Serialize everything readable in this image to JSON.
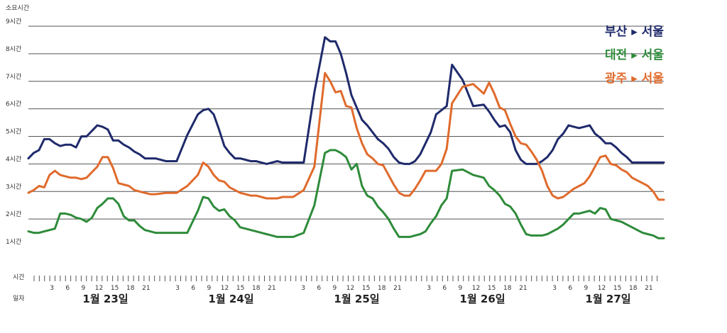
{
  "chart_data": {
    "type": "line",
    "ylabel": "소요시간",
    "y_ticks": [
      {
        "v": 1,
        "label": "1시간"
      },
      {
        "v": 2,
        "label": "2시간"
      },
      {
        "v": 3,
        "label": "3시간"
      },
      {
        "v": 4,
        "label": "4시간"
      },
      {
        "v": 5,
        "label": "5시간"
      },
      {
        "v": 6,
        "label": "6시간"
      },
      {
        "v": 7,
        "label": "7시간"
      },
      {
        "v": 8,
        "label": "8시간"
      },
      {
        "v": 9,
        "label": "9시간"
      }
    ],
    "ylim": [
      1,
      9
    ],
    "gridlines_y": [
      2,
      3,
      4,
      5,
      6,
      7,
      8,
      9
    ],
    "x_row1_label": "시간",
    "x_row2_label": "일자",
    "hour_ticks": [
      "3",
      "6",
      "9",
      "12",
      "15",
      "18",
      "21"
    ],
    "days": [
      "1월 23일",
      "1월 24일",
      "1월 25일",
      "1월 26일",
      "1월 27일"
    ],
    "legend_position": "top-right",
    "series": [
      {
        "name": "부산 ▸ 서울",
        "color": "#1f2a6b",
        "x": [
          0,
          1,
          2,
          3,
          4,
          5,
          6,
          7,
          8,
          9,
          10,
          11,
          12,
          13,
          14,
          15,
          16,
          17,
          18,
          19,
          20,
          21,
          22,
          23,
          24,
          26,
          28,
          30,
          32,
          33,
          34,
          35,
          36,
          37,
          38,
          39,
          40,
          41,
          42,
          43,
          44,
          45,
          46,
          47,
          48,
          49,
          50,
          52,
          54,
          56,
          57,
          58,
          59,
          60,
          61,
          62,
          63,
          64,
          65,
          66,
          67,
          68,
          69,
          70,
          71,
          72,
          73,
          74,
          75,
          76,
          77,
          78,
          79,
          80,
          82,
          84,
          86,
          87,
          88,
          89,
          90,
          91,
          92,
          93,
          94,
          95,
          96,
          97,
          98,
          99,
          100,
          101,
          102,
          103,
          104,
          105,
          106,
          107,
          108,
          109,
          110,
          111,
          112,
          113,
          114,
          115,
          116,
          117,
          118,
          119,
          120
        ],
        "values": [
          4.2,
          4.4,
          4.5,
          4.9,
          4.9,
          4.75,
          4.65,
          4.7,
          4.7,
          4.6,
          5.0,
          5.0,
          5.2,
          5.4,
          5.35,
          5.25,
          4.85,
          4.85,
          4.7,
          4.6,
          4.45,
          4.35,
          4.2,
          4.2,
          4.2,
          4.1,
          4.1,
          5.05,
          5.8,
          5.95,
          6.0,
          5.8,
          5.25,
          4.65,
          4.4,
          4.2,
          4.2,
          4.15,
          4.1,
          4.1,
          4.05,
          4.0,
          4.05,
          4.1,
          4.05,
          4.05,
          4.05,
          4.05,
          6.6,
          8.6,
          8.45,
          8.45,
          8.0,
          7.3,
          6.5,
          6.05,
          5.6,
          5.4,
          5.15,
          4.9,
          4.75,
          4.55,
          4.25,
          4.05,
          4.0,
          4.0,
          4.1,
          4.35,
          4.75,
          5.15,
          5.8,
          5.95,
          6.1,
          7.6,
          7.05,
          6.1,
          6.15,
          5.9,
          5.6,
          5.35,
          5.4,
          5.15,
          4.5,
          4.15,
          4.0,
          4.0,
          4.0,
          4.1,
          4.25,
          4.5,
          4.9,
          5.1,
          5.4,
          5.35,
          5.3,
          5.35,
          5.4,
          5.1,
          4.95,
          4.75,
          4.75,
          4.6,
          4.4,
          4.25,
          4.05,
          4.05,
          4.05,
          4.05,
          4.05,
          4.05,
          4.05
        ],
        "x_end": 120
      },
      {
        "name": "대전 ▸ 서울",
        "color": "#2e8b3a",
        "x": [
          0,
          1,
          2,
          3,
          4,
          5,
          6,
          7,
          8,
          9,
          10,
          11,
          12,
          13,
          14,
          15,
          16,
          17,
          18,
          19,
          20,
          21,
          22,
          23,
          24,
          26,
          28,
          30,
          32,
          33,
          34,
          35,
          36,
          37,
          38,
          39,
          40,
          41,
          42,
          43,
          44,
          45,
          46,
          47,
          48,
          49,
          50,
          52,
          54,
          56,
          57,
          58,
          59,
          60,
          61,
          62,
          63,
          64,
          65,
          66,
          67,
          68,
          69,
          70,
          71,
          72,
          73,
          74,
          75,
          76,
          77,
          78,
          79,
          80,
          82,
          84,
          86,
          87,
          88,
          89,
          90,
          91,
          92,
          93,
          94,
          95,
          96,
          97,
          98,
          99,
          100,
          101,
          102,
          103,
          104,
          105,
          106,
          107,
          108,
          109,
          110,
          111,
          112,
          113,
          114,
          115,
          116,
          117,
          118,
          119,
          120
        ],
        "values": [
          1.55,
          1.5,
          1.5,
          1.55,
          1.6,
          1.65,
          2.2,
          2.2,
          2.15,
          2.05,
          2.0,
          1.9,
          2.05,
          2.4,
          2.55,
          2.75,
          2.75,
          2.55,
          2.1,
          1.95,
          1.95,
          1.75,
          1.6,
          1.55,
          1.5,
          1.5,
          1.5,
          1.5,
          2.3,
          2.8,
          2.75,
          2.45,
          2.3,
          2.35,
          2.1,
          1.95,
          1.7,
          1.65,
          1.6,
          1.55,
          1.5,
          1.45,
          1.4,
          1.35,
          1.35,
          1.35,
          1.35,
          1.5,
          2.5,
          4.4,
          4.5,
          4.5,
          4.4,
          4.25,
          3.8,
          4.0,
          3.2,
          2.85,
          2.75,
          2.45,
          2.25,
          2.0,
          1.65,
          1.35,
          1.35,
          1.35,
          1.4,
          1.45,
          1.55,
          1.85,
          2.1,
          2.5,
          2.75,
          3.75,
          3.8,
          3.6,
          3.5,
          3.2,
          3.05,
          2.85,
          2.55,
          2.45,
          2.2,
          1.8,
          1.45,
          1.4,
          1.4,
          1.4,
          1.45,
          1.55,
          1.65,
          1.8,
          2.0,
          2.2,
          2.2,
          2.25,
          2.3,
          2.2,
          2.4,
          2.35,
          2.0,
          1.95,
          1.9,
          1.8,
          1.7,
          1.6,
          1.5,
          1.45,
          1.4,
          1.3,
          1.3
        ],
        "x_end": 120
      },
      {
        "name": "광주 ▸ 서울",
        "color": "#e06a2c",
        "x": [
          0,
          1,
          2,
          3,
          4,
          5,
          6,
          7,
          8,
          9,
          10,
          11,
          12,
          13,
          14,
          15,
          16,
          17,
          18,
          19,
          20,
          21,
          22,
          23,
          24,
          26,
          28,
          30,
          32,
          33,
          34,
          35,
          36,
          37,
          38,
          39,
          40,
          41,
          42,
          43,
          44,
          45,
          46,
          47,
          48,
          49,
          50,
          52,
          54,
          56,
          57,
          58,
          59,
          60,
          61,
          62,
          63,
          64,
          65,
          66,
          67,
          68,
          69,
          70,
          71,
          72,
          73,
          74,
          75,
          76,
          77,
          78,
          79,
          80,
          82,
          84,
          86,
          87,
          88,
          89,
          90,
          91,
          92,
          93,
          94,
          95,
          96,
          97,
          98,
          99,
          100,
          101,
          102,
          103,
          104,
          105,
          106,
          107,
          108,
          109,
          110,
          111,
          112,
          113,
          114,
          115,
          116,
          117,
          118,
          119,
          120
        ],
        "values": [
          2.95,
          3.05,
          3.2,
          3.15,
          3.6,
          3.75,
          3.6,
          3.55,
          3.5,
          3.5,
          3.45,
          3.5,
          3.7,
          3.9,
          4.25,
          4.25,
          3.85,
          3.3,
          3.25,
          3.2,
          3.05,
          3.0,
          2.95,
          2.9,
          2.9,
          2.95,
          2.95,
          3.2,
          3.6,
          4.05,
          3.9,
          3.6,
          3.4,
          3.35,
          3.15,
          3.05,
          2.95,
          2.9,
          2.85,
          2.85,
          2.8,
          2.75,
          2.75,
          2.75,
          2.8,
          2.8,
          2.8,
          3.05,
          3.9,
          7.3,
          7.0,
          6.6,
          6.65,
          6.1,
          6.05,
          5.3,
          4.75,
          4.35,
          4.2,
          4.0,
          3.95,
          3.6,
          3.25,
          2.95,
          2.85,
          2.85,
          3.1,
          3.4,
          3.75,
          3.75,
          3.75,
          4.0,
          4.55,
          6.2,
          6.8,
          6.9,
          6.55,
          6.95,
          6.55,
          6.05,
          5.95,
          5.45,
          5.0,
          4.75,
          4.7,
          4.45,
          4.15,
          3.75,
          3.2,
          2.85,
          2.75,
          2.8,
          2.95,
          3.1,
          3.2,
          3.3,
          3.55,
          3.9,
          4.25,
          4.3,
          4.0,
          3.95,
          3.8,
          3.7,
          3.5,
          3.4,
          3.3,
          3.2,
          3.0,
          2.7,
          2.7
        ],
        "x_end": 120
      }
    ]
  }
}
